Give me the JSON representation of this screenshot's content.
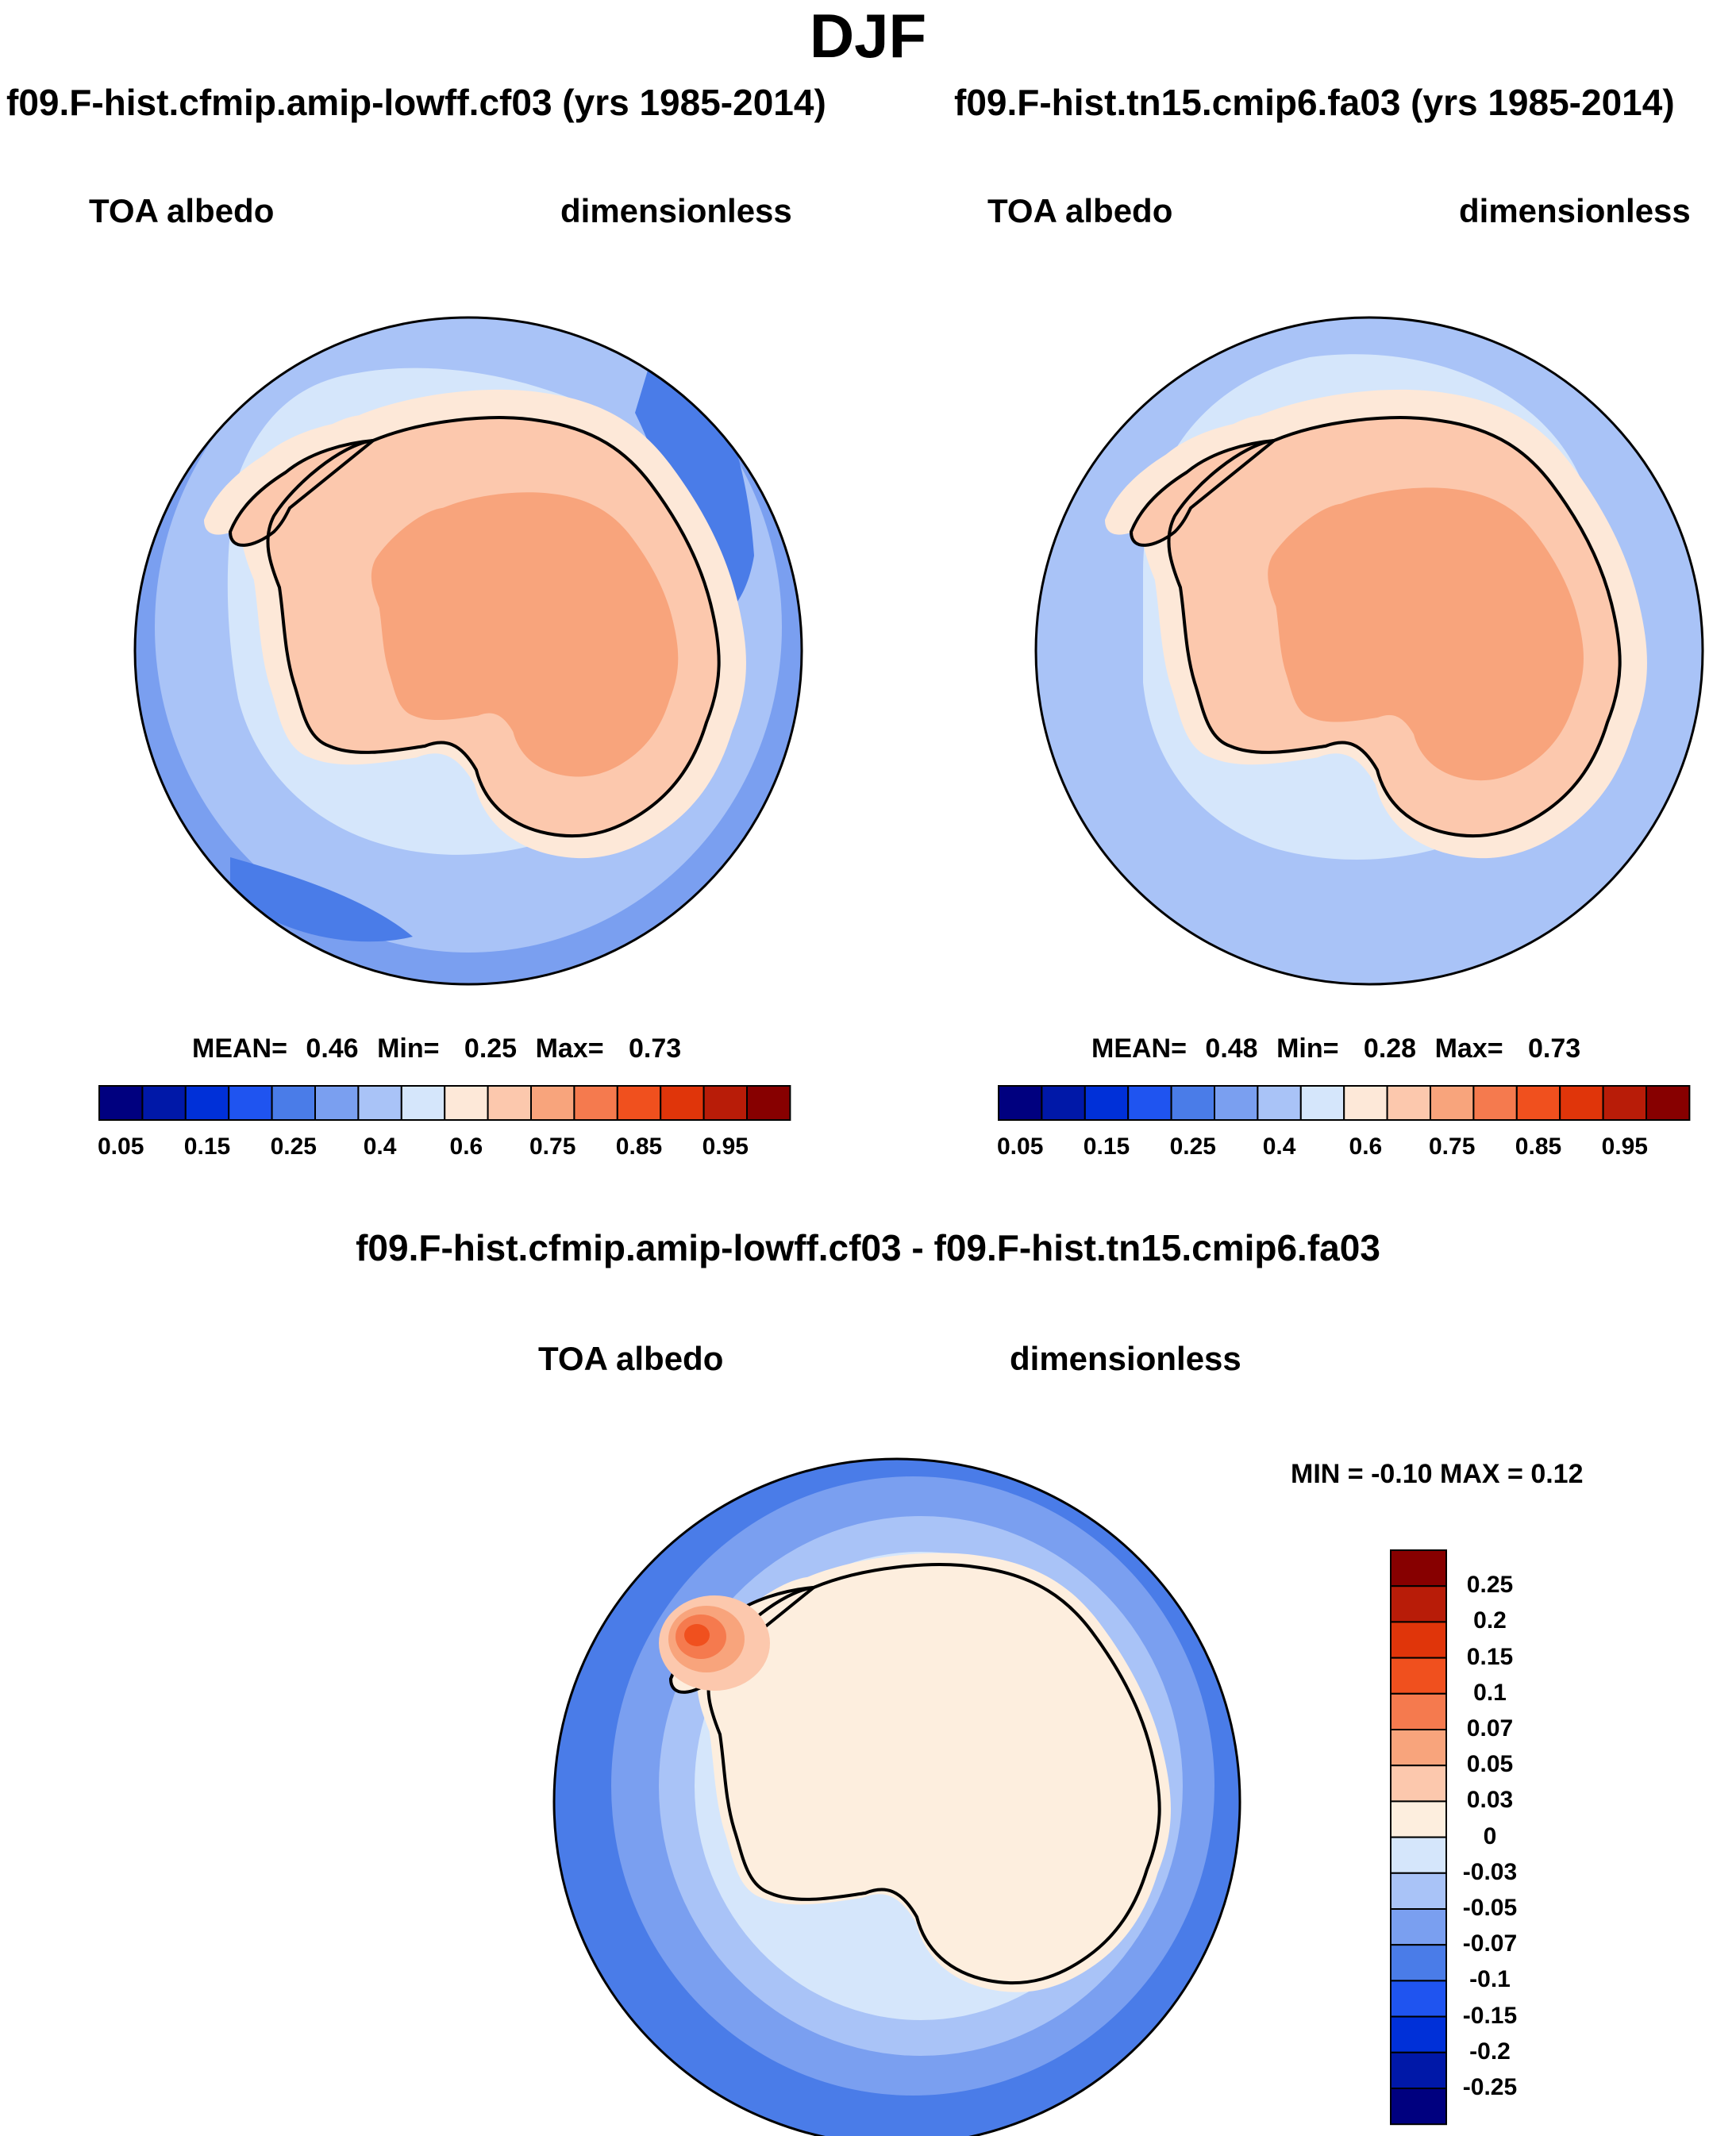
{
  "main_title": "DJF",
  "panels": [
    {
      "case_title": "f09.F-hist.cfmip.amip-lowff.cf03 (yrs 1985-2014)",
      "variable": "TOA albedo",
      "units": "dimensionless",
      "stats": {
        "mean_label": "MEAN=",
        "mean": "0.46",
        "min_label": "Min=",
        "min": "0.25",
        "max_label": "Max=",
        "max": "0.73"
      }
    },
    {
      "case_title": "f09.F-hist.tn15.cmip6.fa03 (yrs 1985-2014)",
      "variable": "TOA albedo",
      "units": "dimensionless",
      "stats": {
        "mean_label": "MEAN=",
        "mean": "0.48",
        "min_label": "Min=",
        "min": "0.28",
        "max_label": "Max=",
        "max": "0.73"
      }
    }
  ],
  "diff_panel": {
    "title": "f09.F-hist.cfmip.amip-lowff.cf03 - f09.F-hist.tn15.cmip6.fa03",
    "variable": "TOA albedo",
    "units": "dimensionless",
    "minmax": "MIN =  -0.10 MAX =   0.12"
  },
  "abs_colorbar": {
    "colors": [
      "#00007f",
      "#0018a8",
      "#0030d8",
      "#1f54f0",
      "#4a7ce8",
      "#7a9ff0",
      "#a9c3f7",
      "#d5e6fb",
      "#fde8d8",
      "#fcc8ad",
      "#f8a47c",
      "#f57a4e",
      "#f0501e",
      "#e0350a",
      "#b81c08",
      "#870000"
    ],
    "labels": [
      "0.05",
      "0.15",
      "0.25",
      "0.4",
      "0.6",
      "0.75",
      "0.85",
      "0.95"
    ]
  },
  "diff_colorbar": {
    "colors": [
      "#870000",
      "#b81c08",
      "#e0350a",
      "#f0501e",
      "#f57a4e",
      "#f8a47c",
      "#fcc8ad",
      "#fdeede",
      "#d5e6fb",
      "#a9c3f7",
      "#7a9ff0",
      "#4a7ce8",
      "#1f54f0",
      "#0030d8",
      "#0018a8",
      "#00007f"
    ],
    "labels": [
      "0.25",
      "0.2",
      "0.15",
      "0.1",
      "0.07",
      "0.05",
      "0.03",
      "0",
      "-0.03",
      "-0.05",
      "-0.07",
      "-0.1",
      "-0.15",
      "-0.2",
      "-0.25"
    ]
  },
  "map_colors": {
    "abs_ocean_outer": "#7a9ff0",
    "abs_ocean_mid": "#a9c3f7",
    "abs_ocean_inner": "#d5e6fb",
    "abs_coast": "#fde8d8",
    "abs_land": "#fcc8ad",
    "abs_plateau": "#f8a47c",
    "abs_dark_patch": "#4a7ce8",
    "diff_outer": "#4a7ce8",
    "diff_mid": "#7a9ff0",
    "diff_ring": "#a9c3f7",
    "diff_inner": "#d5e6fb",
    "diff_land": "#fdeede",
    "diff_hot1": "#fcc8ad",
    "diff_hot2": "#f8a47c",
    "diff_hot3": "#f57a4e",
    "diff_hot4": "#f0501e"
  }
}
